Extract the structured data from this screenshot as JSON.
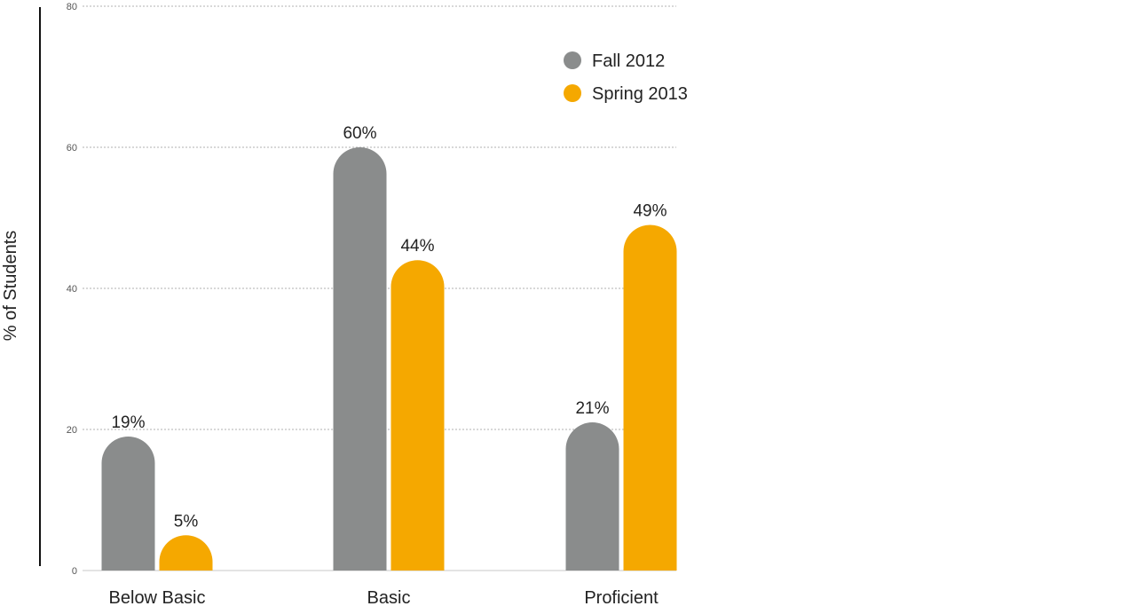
{
  "chart_data": {
    "type": "bar",
    "categories": [
      "Below Basic",
      "Basic",
      "Proficient"
    ],
    "series": [
      {
        "name": "Fall 2012",
        "color": "#8a8c8c",
        "values": [
          19,
          60,
          21
        ]
      },
      {
        "name": "Spring 2013",
        "color": "#f5a800",
        "values": [
          5,
          44,
          49
        ]
      }
    ],
    "data_labels": [
      [
        "19%",
        "60%",
        "21%"
      ],
      [
        "5%",
        "44%",
        "49%"
      ]
    ],
    "ylabel": "% of Students",
    "xlabel": "",
    "title": "",
    "ylim": [
      0,
      80
    ],
    "yticks": [
      0,
      20,
      40,
      60,
      80
    ],
    "grid": true,
    "grid_style": "dotted",
    "legend_position": "top-right",
    "bar_shape": "rounded-top"
  }
}
